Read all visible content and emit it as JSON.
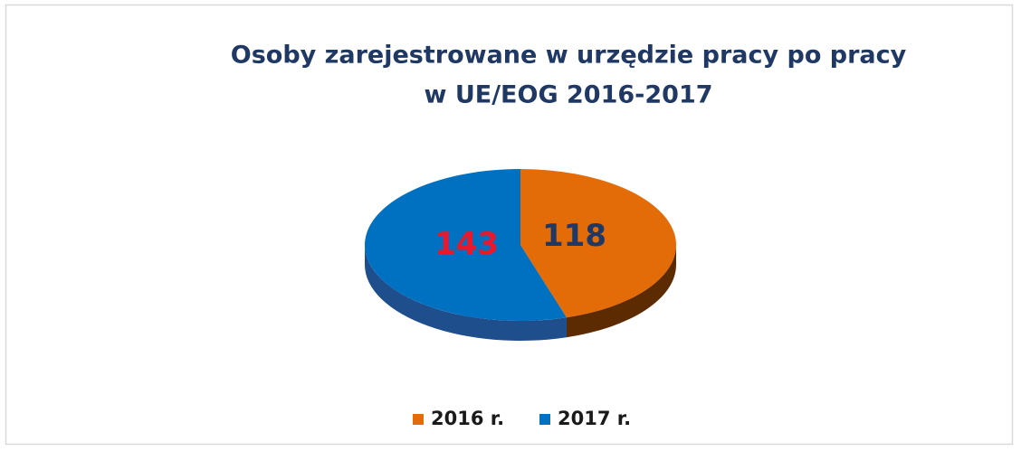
{
  "chart_data": {
    "type": "pie3d",
    "title": [
      "Osoby zarejestrowane w urzędzie pracy po pracy",
      "w UE/EOG 2016-2017"
    ],
    "categories": [
      "2016 r.",
      "2017 r."
    ],
    "values": [
      118,
      143
    ],
    "colors": [
      "#e36c09",
      "#0070c0"
    ],
    "side_colors": [
      "#5c2b02",
      "#1f4e8c"
    ],
    "label_colors": [
      "#1f3864",
      "#e8192c"
    ],
    "legend": "bottom"
  }
}
